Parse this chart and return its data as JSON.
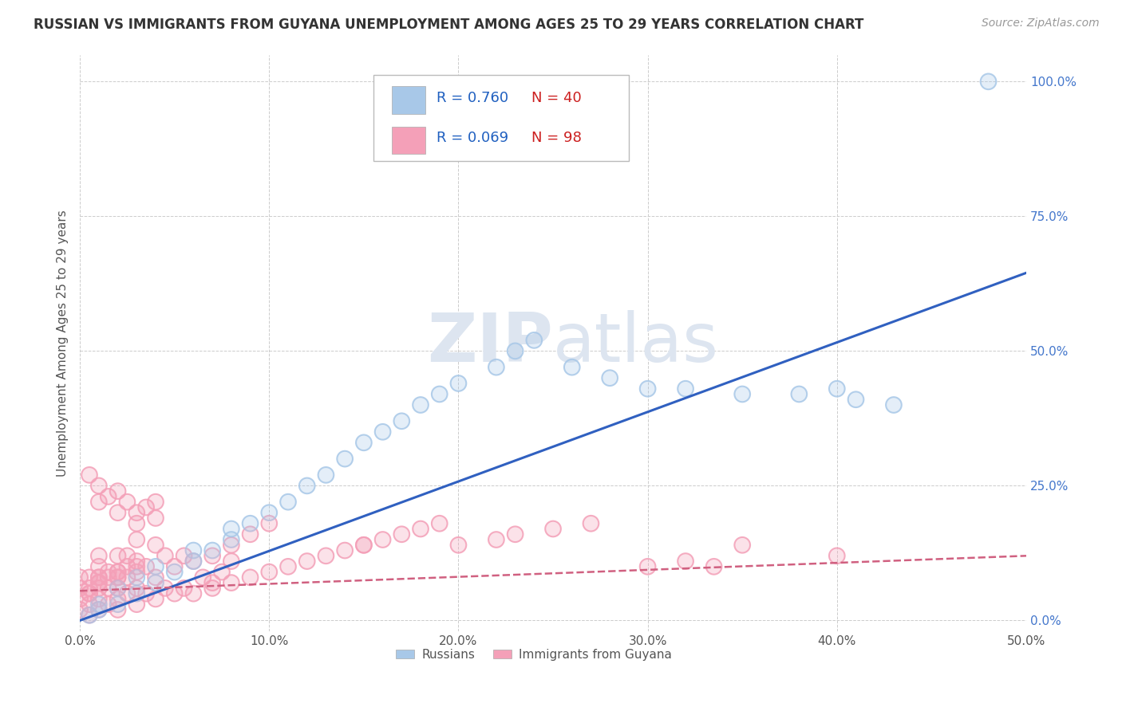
{
  "title": "RUSSIAN VS IMMIGRANTS FROM GUYANA UNEMPLOYMENT AMONG AGES 25 TO 29 YEARS CORRELATION CHART",
  "source_text": "Source: ZipAtlas.com",
  "ylabel": "Unemployment Among Ages 25 to 29 years",
  "xlim": [
    0.0,
    0.5
  ],
  "ylim": [
    -0.02,
    1.05
  ],
  "xtick_labels": [
    "0.0%",
    "10.0%",
    "20.0%",
    "30.0%",
    "40.0%",
    "50.0%"
  ],
  "xtick_vals": [
    0.0,
    0.1,
    0.2,
    0.3,
    0.4,
    0.5
  ],
  "ytick_labels": [
    "100.0%",
    "75.0%",
    "50.0%",
    "25.0%",
    "0.0%"
  ],
  "ytick_vals": [
    1.0,
    0.75,
    0.5,
    0.25,
    0.0
  ],
  "blue_r": 0.76,
  "blue_n": 40,
  "pink_r": 0.069,
  "pink_n": 98,
  "blue_color": "#a8c8e8",
  "pink_color": "#f4a0b8",
  "blue_line_color": "#3060c0",
  "pink_line_color": "#d06080",
  "legend_r_color": "#2060c0",
  "legend_n_color": "#cc2020",
  "watermark_color": "#dde5f0",
  "blue_line_x0": 0.0,
  "blue_line_y0": 0.0,
  "blue_line_x1": 0.5,
  "blue_line_y1": 0.645,
  "pink_line_x0": 0.0,
  "pink_line_y0": 0.055,
  "pink_line_x1": 0.5,
  "pink_line_y1": 0.12,
  "blue_scatter_x": [
    0.005,
    0.01,
    0.01,
    0.02,
    0.02,
    0.03,
    0.03,
    0.04,
    0.04,
    0.05,
    0.06,
    0.06,
    0.07,
    0.08,
    0.08,
    0.09,
    0.1,
    0.11,
    0.12,
    0.13,
    0.14,
    0.15,
    0.16,
    0.17,
    0.18,
    0.19,
    0.2,
    0.22,
    0.23,
    0.24,
    0.26,
    0.28,
    0.3,
    0.32,
    0.35,
    0.38,
    0.4,
    0.41,
    0.43,
    0.48
  ],
  "blue_scatter_y": [
    0.01,
    0.02,
    0.03,
    0.03,
    0.06,
    0.05,
    0.08,
    0.07,
    0.1,
    0.09,
    0.11,
    0.13,
    0.13,
    0.15,
    0.17,
    0.18,
    0.2,
    0.22,
    0.25,
    0.27,
    0.3,
    0.33,
    0.35,
    0.37,
    0.4,
    0.42,
    0.44,
    0.47,
    0.5,
    0.52,
    0.47,
    0.45,
    0.43,
    0.43,
    0.42,
    0.42,
    0.43,
    0.41,
    0.4,
    1.0
  ],
  "pink_scatter_x": [
    0.0,
    0.0,
    0.0,
    0.0,
    0.005,
    0.005,
    0.005,
    0.005,
    0.01,
    0.01,
    0.01,
    0.01,
    0.01,
    0.01,
    0.015,
    0.015,
    0.015,
    0.02,
    0.02,
    0.02,
    0.02,
    0.02,
    0.025,
    0.025,
    0.025,
    0.03,
    0.03,
    0.03,
    0.03,
    0.035,
    0.035,
    0.04,
    0.04,
    0.04,
    0.045,
    0.045,
    0.05,
    0.05,
    0.055,
    0.055,
    0.06,
    0.06,
    0.065,
    0.07,
    0.07,
    0.075,
    0.08,
    0.08,
    0.09,
    0.09,
    0.1,
    0.1,
    0.11,
    0.12,
    0.13,
    0.14,
    0.15,
    0.16,
    0.17,
    0.18,
    0.19,
    0.2,
    0.22,
    0.23,
    0.25,
    0.27,
    0.3,
    0.32,
    0.35,
    0.01,
    0.02,
    0.03,
    0.04,
    0.005,
    0.01,
    0.015,
    0.02,
    0.025,
    0.03,
    0.035,
    0.04,
    0.01,
    0.02,
    0.01,
    0.02,
    0.03,
    0.005,
    0.01,
    0.015,
    0.02,
    0.025,
    0.03,
    0.005,
    0.335,
    0.4,
    0.15,
    0.08,
    0.07
  ],
  "pink_scatter_y": [
    0.02,
    0.04,
    0.06,
    0.08,
    0.01,
    0.03,
    0.05,
    0.08,
    0.02,
    0.04,
    0.06,
    0.08,
    0.1,
    0.12,
    0.03,
    0.06,
    0.09,
    0.02,
    0.04,
    0.06,
    0.08,
    0.12,
    0.05,
    0.08,
    0.12,
    0.03,
    0.06,
    0.09,
    0.15,
    0.05,
    0.1,
    0.04,
    0.08,
    0.14,
    0.06,
    0.12,
    0.05,
    0.1,
    0.06,
    0.12,
    0.05,
    0.11,
    0.08,
    0.06,
    0.12,
    0.09,
    0.07,
    0.14,
    0.08,
    0.16,
    0.09,
    0.18,
    0.1,
    0.11,
    0.12,
    0.13,
    0.14,
    0.15,
    0.16,
    0.17,
    0.18,
    0.14,
    0.15,
    0.16,
    0.17,
    0.18,
    0.1,
    0.11,
    0.14,
    0.22,
    0.2,
    0.18,
    0.19,
    0.27,
    0.25,
    0.23,
    0.24,
    0.22,
    0.2,
    0.21,
    0.22,
    0.08,
    0.09,
    0.07,
    0.08,
    0.1,
    0.06,
    0.07,
    0.08,
    0.09,
    0.1,
    0.11,
    0.05,
    0.1,
    0.12,
    0.14,
    0.11,
    0.07
  ]
}
